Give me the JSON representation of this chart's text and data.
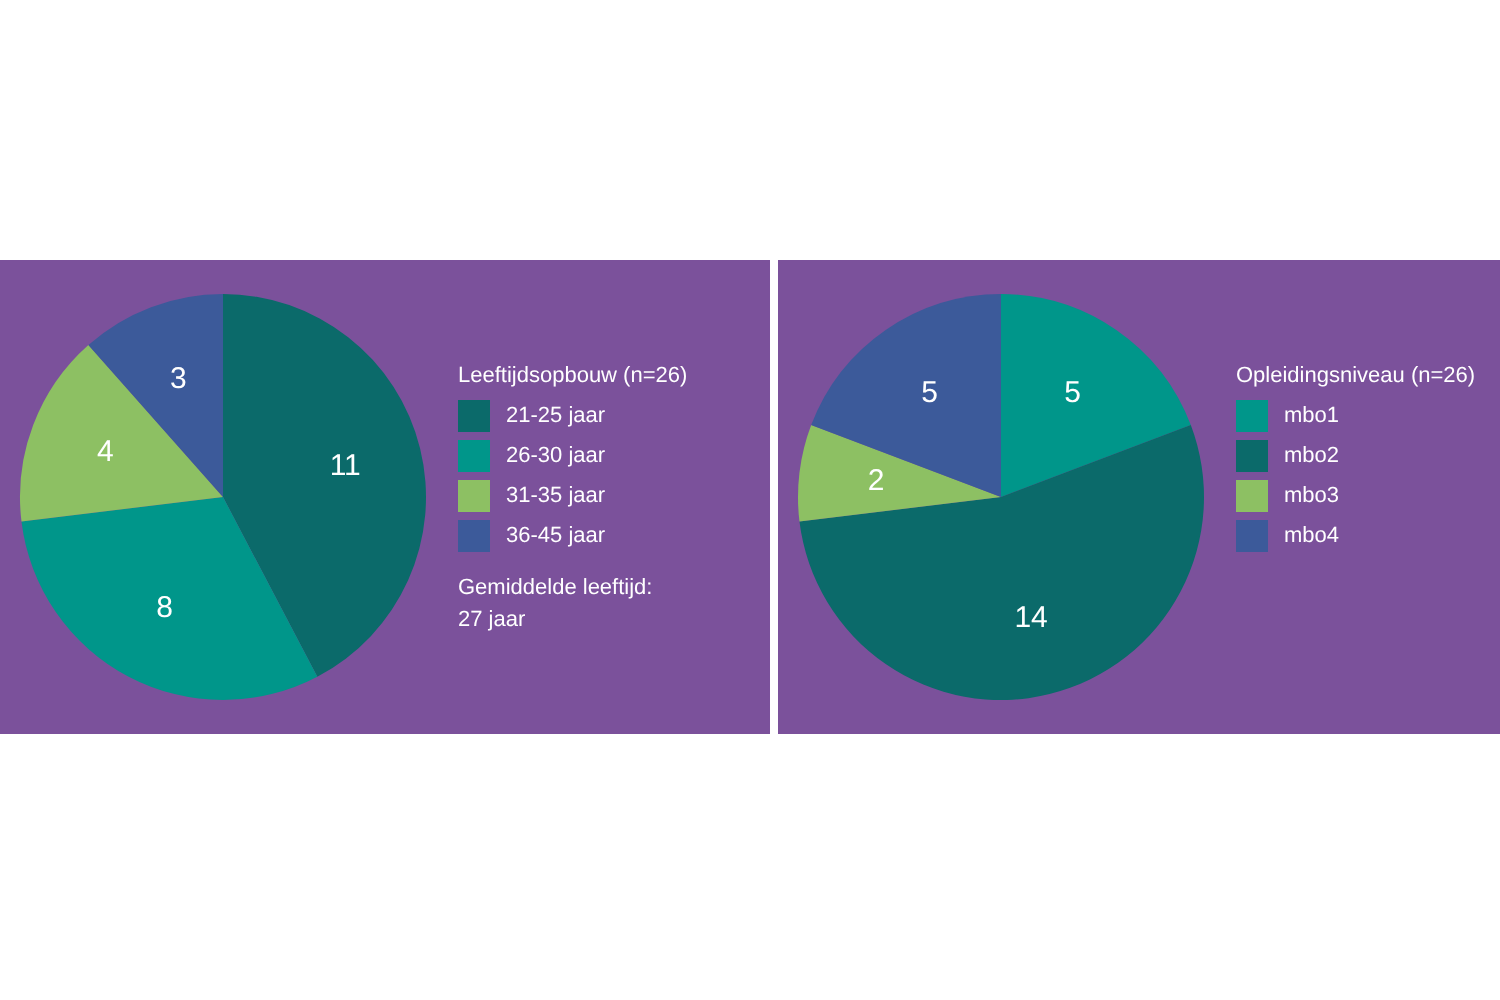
{
  "chart_data": [
    {
      "type": "pie",
      "legend_title": "Leeftijdsopbouw (n=26)",
      "categories": [
        "21-25 jaar",
        "26-30 jaar",
        "31-35 jaar",
        "36-45 jaar"
      ],
      "values": [
        11,
        8,
        4,
        3
      ],
      "colors": [
        "#0b6a6a",
        "#00968a",
        "#8dc063",
        "#3c5a9a"
      ],
      "data_labels": true,
      "legend": "right",
      "annotations": [
        "Gemiddelde leeftijd:\n27 jaar"
      ]
    },
    {
      "type": "pie",
      "legend_title": "Opleidingsniveau (n=26)",
      "categories": [
        "mbo1",
        "mbo2",
        "mbo3",
        "mbo4"
      ],
      "values": [
        5,
        14,
        2,
        5
      ],
      "colors": [
        "#00968a",
        "#0b6a6a",
        "#8dc063",
        "#3c5a9a"
      ],
      "data_labels": true,
      "legend": "right"
    }
  ]
}
